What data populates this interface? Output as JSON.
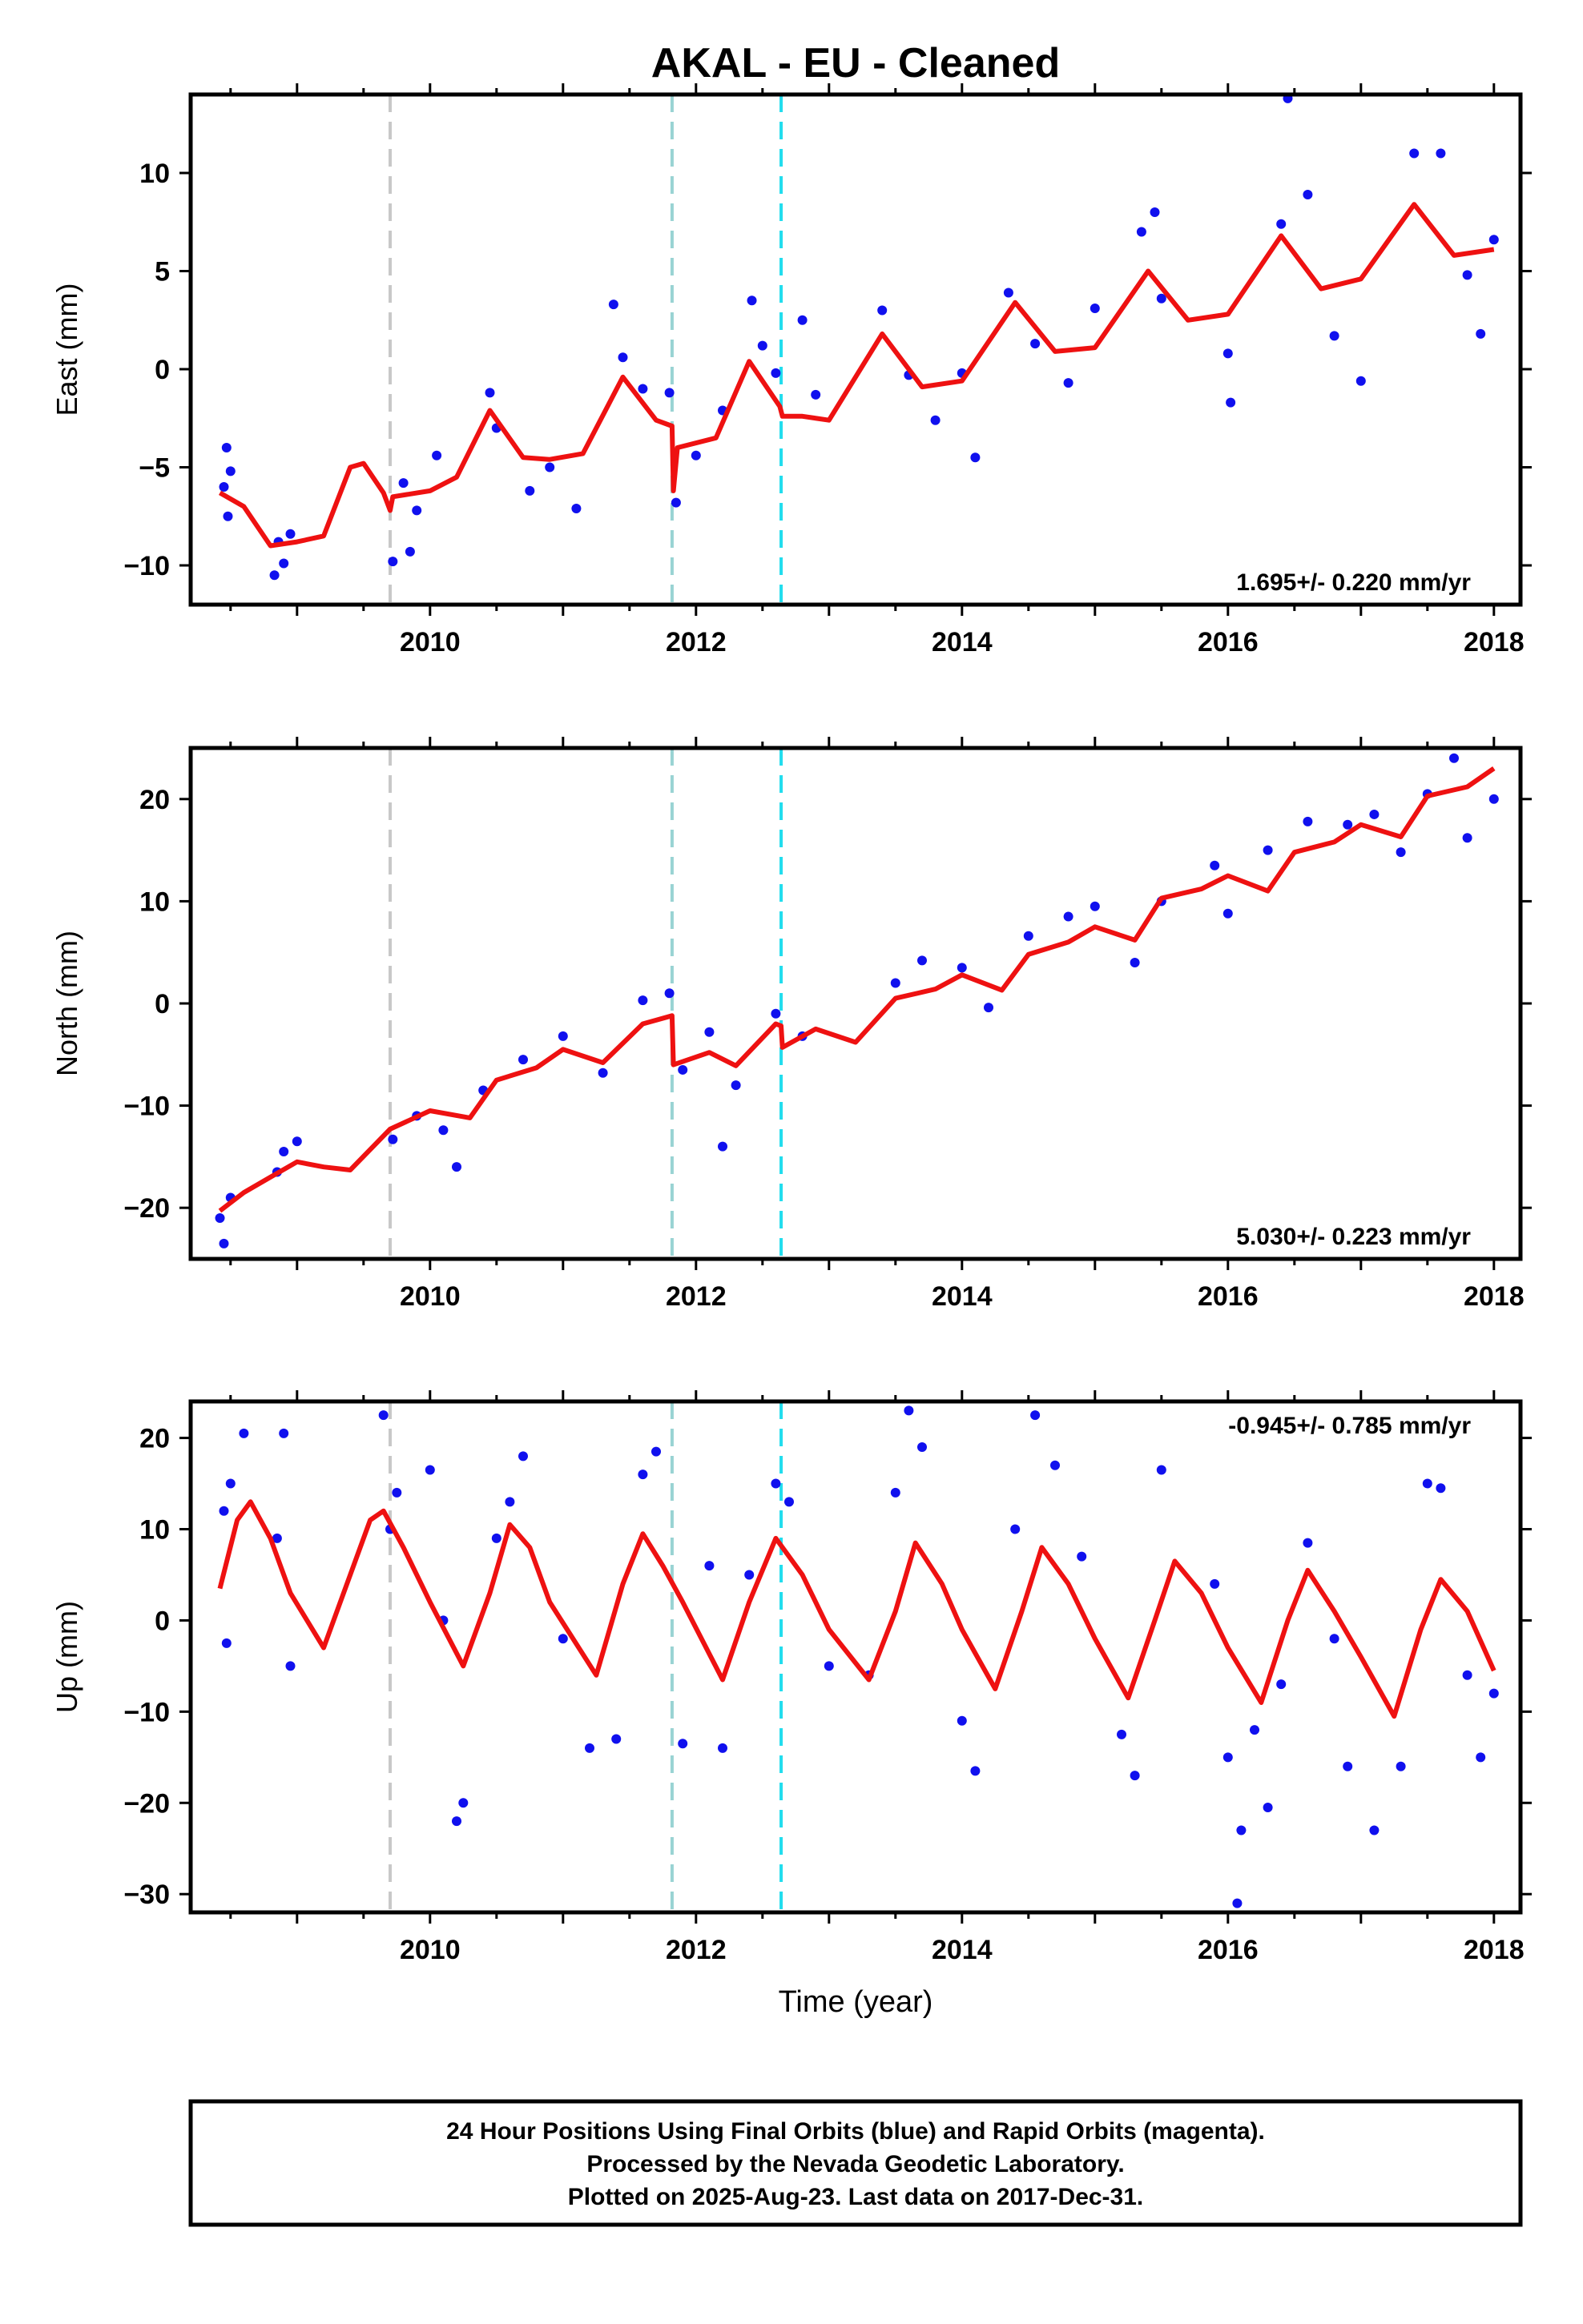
{
  "title": "AKAL  - EU - Cleaned",
  "xlabel": "Time (year)",
  "footer": {
    "line1": "24 Hour Positions Using Final Orbits (blue) and Rapid Orbits (magenta).",
    "line2": "Processed by the Nevada Geodetic Laboratory.",
    "line3": "Plotted on 2025-Aug-23. Last data on 2017-Dec-31."
  },
  "colors": {
    "points": "#1010ee",
    "model": "#ee1111",
    "steps": [
      "#c8c8c8",
      "#99d3d3",
      "#22ddee"
    ]
  },
  "chart_data": [
    {
      "type": "scatter",
      "ylabel": "East (mm)",
      "rate_label": "1.695+/- 0.220 mm/yr",
      "xlim": [
        2008.2,
        2018.2
      ],
      "ylim": [
        -12,
        14
      ],
      "xticks": [
        2010,
        2012,
        2014,
        2016,
        2018
      ],
      "yticks": [
        -10,
        -5,
        0,
        5,
        10
      ],
      "step_lines": [
        2009.7,
        2011.82,
        2012.64
      ],
      "model": [
        [
          2008.42,
          -6.3
        ],
        [
          2008.6,
          -7.0
        ],
        [
          2008.8,
          -9.0
        ],
        [
          2009.0,
          -8.8
        ],
        [
          2009.2,
          -8.5
        ],
        [
          2009.4,
          -5.0
        ],
        [
          2009.5,
          -4.8
        ],
        [
          2009.65,
          -6.3
        ],
        [
          2009.7,
          -7.2
        ],
        [
          2009.72,
          -6.5
        ],
        [
          2010.0,
          -6.2
        ],
        [
          2010.2,
          -5.5
        ],
        [
          2010.45,
          -2.1
        ],
        [
          2010.7,
          -4.5
        ],
        [
          2010.9,
          -4.6
        ],
        [
          2011.15,
          -4.3
        ],
        [
          2011.45,
          -0.4
        ],
        [
          2011.7,
          -2.6
        ],
        [
          2011.82,
          -2.9
        ],
        [
          2011.83,
          -6.2
        ],
        [
          2011.86,
          -4.0
        ],
        [
          2012.15,
          -3.5
        ],
        [
          2012.4,
          0.4
        ],
        [
          2012.63,
          -1.9
        ],
        [
          2012.65,
          -2.4
        ],
        [
          2012.8,
          -2.4
        ],
        [
          2013.0,
          -2.6
        ],
        [
          2013.4,
          1.8
        ],
        [
          2013.7,
          -0.9
        ],
        [
          2014.0,
          -0.6
        ],
        [
          2014.4,
          3.4
        ],
        [
          2014.7,
          0.9
        ],
        [
          2015.0,
          1.1
        ],
        [
          2015.4,
          5.0
        ],
        [
          2015.7,
          2.5
        ],
        [
          2016.0,
          2.8
        ],
        [
          2016.4,
          6.8
        ],
        [
          2016.7,
          4.1
        ],
        [
          2017.0,
          4.6
        ],
        [
          2017.4,
          8.4
        ],
        [
          2017.7,
          5.8
        ],
        [
          2018.0,
          6.1
        ]
      ],
      "points": [
        [
          2008.45,
          -6.0
        ],
        [
          2008.47,
          -4.0
        ],
        [
          2008.48,
          -7.5
        ],
        [
          2008.5,
          -5.2
        ],
        [
          2008.83,
          -10.5
        ],
        [
          2008.86,
          -8.8
        ],
        [
          2008.9,
          -9.9
        ],
        [
          2008.95,
          -8.4
        ],
        [
          2009.72,
          -9.8
        ],
        [
          2009.8,
          -5.8
        ],
        [
          2009.85,
          -9.3
        ],
        [
          2009.9,
          -7.2
        ],
        [
          2010.05,
          -4.4
        ],
        [
          2010.45,
          -1.2
        ],
        [
          2010.5,
          -3.0
        ],
        [
          2010.75,
          -6.2
        ],
        [
          2010.9,
          -5.0
        ],
        [
          2011.1,
          -7.1
        ],
        [
          2011.38,
          3.3
        ],
        [
          2011.45,
          0.6
        ],
        [
          2011.6,
          -1.0
        ],
        [
          2011.8,
          -1.2
        ],
        [
          2011.85,
          -6.8
        ],
        [
          2012.0,
          -4.4
        ],
        [
          2012.2,
          -2.1
        ],
        [
          2012.42,
          3.5
        ],
        [
          2012.5,
          1.2
        ],
        [
          2012.6,
          -0.2
        ],
        [
          2012.8,
          2.5
        ],
        [
          2012.9,
          -1.3
        ],
        [
          2013.4,
          3.0
        ],
        [
          2013.6,
          -0.3
        ],
        [
          2013.8,
          -2.6
        ],
        [
          2014.0,
          -0.2
        ],
        [
          2014.1,
          -4.5
        ],
        [
          2014.35,
          3.9
        ],
        [
          2014.55,
          1.3
        ],
        [
          2014.8,
          -0.7
        ],
        [
          2015.0,
          3.1
        ],
        [
          2015.35,
          7.0
        ],
        [
          2015.45,
          8.0
        ],
        [
          2015.5,
          3.6
        ],
        [
          2016.0,
          0.8
        ],
        [
          2016.02,
          -1.7
        ],
        [
          2016.4,
          7.4
        ],
        [
          2016.45,
          13.8
        ],
        [
          2016.6,
          8.9
        ],
        [
          2016.8,
          1.7
        ],
        [
          2017.0,
          -0.6
        ],
        [
          2017.4,
          11.0
        ],
        [
          2017.6,
          11.0
        ],
        [
          2017.8,
          4.8
        ],
        [
          2017.9,
          1.8
        ],
        [
          2018.0,
          6.6
        ]
      ]
    },
    {
      "type": "scatter",
      "ylabel": "North (mm)",
      "rate_label": "5.030+/- 0.223 mm/yr",
      "xlim": [
        2008.2,
        2018.2
      ],
      "ylim": [
        -25,
        25
      ],
      "xticks": [
        2010,
        2012,
        2014,
        2016,
        2018
      ],
      "yticks": [
        -20,
        -10,
        0,
        10,
        20
      ],
      "step_lines": [
        2009.7,
        2011.82,
        2012.64
      ],
      "model": [
        [
          2008.42,
          -20.3
        ],
        [
          2008.6,
          -18.5
        ],
        [
          2008.8,
          -17.0
        ],
        [
          2009.0,
          -15.5
        ],
        [
          2009.2,
          -16.0
        ],
        [
          2009.4,
          -16.3
        ],
        [
          2009.7,
          -12.3
        ],
        [
          2010.0,
          -10.5
        ],
        [
          2010.3,
          -11.2
        ],
        [
          2010.5,
          -7.5
        ],
        [
          2010.8,
          -6.3
        ],
        [
          2011.0,
          -4.5
        ],
        [
          2011.3,
          -5.8
        ],
        [
          2011.6,
          -2.0
        ],
        [
          2011.82,
          -1.2
        ],
        [
          2011.83,
          -6.0
        ],
        [
          2012.1,
          -4.8
        ],
        [
          2012.3,
          -6.1
        ],
        [
          2012.6,
          -2.0
        ],
        [
          2012.64,
          -2.2
        ],
        [
          2012.65,
          -4.3
        ],
        [
          2012.9,
          -2.5
        ],
        [
          2013.2,
          -3.8
        ],
        [
          2013.5,
          0.5
        ],
        [
          2013.8,
          1.4
        ],
        [
          2014.0,
          2.8
        ],
        [
          2014.3,
          1.3
        ],
        [
          2014.5,
          4.8
        ],
        [
          2014.8,
          6.0
        ],
        [
          2015.0,
          7.5
        ],
        [
          2015.3,
          6.2
        ],
        [
          2015.5,
          10.3
        ],
        [
          2015.8,
          11.2
        ],
        [
          2016.0,
          12.5
        ],
        [
          2016.3,
          11.0
        ],
        [
          2016.5,
          14.8
        ],
        [
          2016.8,
          15.8
        ],
        [
          2017.0,
          17.5
        ],
        [
          2017.3,
          16.3
        ],
        [
          2017.5,
          20.3
        ],
        [
          2017.8,
          21.2
        ],
        [
          2018.0,
          23.0
        ]
      ],
      "points": [
        [
          2008.42,
          -21.0
        ],
        [
          2008.45,
          -23.5
        ],
        [
          2008.5,
          -19.0
        ],
        [
          2008.85,
          -16.5
        ],
        [
          2008.9,
          -14.5
        ],
        [
          2009.0,
          -13.5
        ],
        [
          2009.72,
          -13.3
        ],
        [
          2009.9,
          -11.0
        ],
        [
          2010.1,
          -12.4
        ],
        [
          2010.2,
          -16.0
        ],
        [
          2010.4,
          -8.5
        ],
        [
          2010.7,
          -5.5
        ],
        [
          2011.0,
          -3.2
        ],
        [
          2011.3,
          -6.8
        ],
        [
          2011.6,
          0.3
        ],
        [
          2011.8,
          1.0
        ],
        [
          2011.9,
          -6.5
        ],
        [
          2012.1,
          -2.8
        ],
        [
          2012.2,
          -14.0
        ],
        [
          2012.3,
          -8.0
        ],
        [
          2012.6,
          -1.0
        ],
        [
          2012.8,
          -3.2
        ],
        [
          2013.5,
          2.0
        ],
        [
          2013.7,
          4.2
        ],
        [
          2014.0,
          3.5
        ],
        [
          2014.2,
          -0.4
        ],
        [
          2014.5,
          6.6
        ],
        [
          2014.8,
          8.5
        ],
        [
          2015.0,
          9.5
        ],
        [
          2015.3,
          4.0
        ],
        [
          2015.5,
          10.0
        ],
        [
          2015.9,
          13.5
        ],
        [
          2016.0,
          8.8
        ],
        [
          2016.3,
          15.0
        ],
        [
          2016.6,
          17.8
        ],
        [
          2016.9,
          17.5
        ],
        [
          2017.1,
          18.5
        ],
        [
          2017.3,
          14.8
        ],
        [
          2017.5,
          20.5
        ],
        [
          2017.7,
          24.0
        ],
        [
          2017.8,
          16.2
        ],
        [
          2018.0,
          20.0
        ]
      ]
    },
    {
      "type": "scatter",
      "ylabel": "Up (mm)",
      "xlabel": "Time (year)",
      "rate_label": "-0.945+/- 0.785 mm/yr",
      "xlim": [
        2008.2,
        2018.2
      ],
      "ylim": [
        -32,
        24
      ],
      "xticks": [
        2010,
        2012,
        2014,
        2016,
        2018
      ],
      "yticks": [
        -30,
        -20,
        -10,
        0,
        10,
        20
      ],
      "step_lines": [
        2009.7,
        2011.82,
        2012.64
      ],
      "model": [
        [
          2008.42,
          3.5
        ],
        [
          2008.55,
          11.0
        ],
        [
          2008.65,
          13.0
        ],
        [
          2008.8,
          9.0
        ],
        [
          2008.95,
          3.0
        ],
        [
          2009.2,
          -3.0
        ],
        [
          2009.4,
          5.0
        ],
        [
          2009.55,
          11.0
        ],
        [
          2009.65,
          12.0
        ],
        [
          2009.8,
          8.0
        ],
        [
          2010.0,
          2.0
        ],
        [
          2010.25,
          -5.0
        ],
        [
          2010.45,
          3.0
        ],
        [
          2010.6,
          10.5
        ],
        [
          2010.75,
          8.0
        ],
        [
          2010.9,
          2.0
        ],
        [
          2011.25,
          -6.0
        ],
        [
          2011.45,
          4.0
        ],
        [
          2011.6,
          9.5
        ],
        [
          2011.75,
          6.0
        ],
        [
          2011.9,
          2.0
        ],
        [
          2012.2,
          -6.5
        ],
        [
          2012.4,
          2.0
        ],
        [
          2012.6,
          9.0
        ],
        [
          2012.8,
          5.0
        ],
        [
          2013.0,
          -1.0
        ],
        [
          2013.3,
          -6.5
        ],
        [
          2013.5,
          1.0
        ],
        [
          2013.65,
          8.5
        ],
        [
          2013.85,
          4.0
        ],
        [
          2014.0,
          -1.0
        ],
        [
          2014.25,
          -7.5
        ],
        [
          2014.45,
          1.0
        ],
        [
          2014.6,
          8.0
        ],
        [
          2014.8,
          4.0
        ],
        [
          2015.0,
          -2.0
        ],
        [
          2015.25,
          -8.5
        ],
        [
          2015.45,
          0.0
        ],
        [
          2015.6,
          6.5
        ],
        [
          2015.8,
          3.0
        ],
        [
          2016.0,
          -3.0
        ],
        [
          2016.25,
          -9.0
        ],
        [
          2016.45,
          0.0
        ],
        [
          2016.6,
          5.5
        ],
        [
          2016.8,
          1.0
        ],
        [
          2017.0,
          -4.0
        ],
        [
          2017.25,
          -10.5
        ],
        [
          2017.45,
          -1.0
        ],
        [
          2017.6,
          4.5
        ],
        [
          2017.8,
          1.0
        ],
        [
          2018.0,
          -5.5
        ]
      ],
      "points": [
        [
          2008.45,
          12.0
        ],
        [
          2008.5,
          15.0
        ],
        [
          2008.47,
          -2.5
        ],
        [
          2008.6,
          20.5
        ],
        [
          2008.85,
          9.0
        ],
        [
          2008.9,
          20.5
        ],
        [
          2008.95,
          -5.0
        ],
        [
          2009.65,
          22.5
        ],
        [
          2009.7,
          10.0
        ],
        [
          2009.75,
          14.0
        ],
        [
          2010.0,
          16.5
        ],
        [
          2010.1,
          0.0
        ],
        [
          2010.2,
          -22.0
        ],
        [
          2010.25,
          -20.0
        ],
        [
          2010.5,
          9.0
        ],
        [
          2010.6,
          13.0
        ],
        [
          2010.7,
          18.0
        ],
        [
          2011.0,
          -2.0
        ],
        [
          2011.2,
          -14.0
        ],
        [
          2011.4,
          -13.0
        ],
        [
          2011.6,
          16.0
        ],
        [
          2011.7,
          18.5
        ],
        [
          2011.9,
          -13.5
        ],
        [
          2012.1,
          6.0
        ],
        [
          2012.2,
          -14.0
        ],
        [
          2012.4,
          5.0
        ],
        [
          2012.6,
          15.0
        ],
        [
          2012.7,
          13.0
        ],
        [
          2013.0,
          -5.0
        ],
        [
          2013.3,
          -6.0
        ],
        [
          2013.5,
          14.0
        ],
        [
          2013.6,
          23.0
        ],
        [
          2013.7,
          19.0
        ],
        [
          2014.0,
          -11.0
        ],
        [
          2014.1,
          -16.5
        ],
        [
          2014.4,
          10.0
        ],
        [
          2014.55,
          22.5
        ],
        [
          2014.7,
          17.0
        ],
        [
          2014.9,
          7.0
        ],
        [
          2015.2,
          -12.5
        ],
        [
          2015.3,
          -17.0
        ],
        [
          2015.5,
          16.5
        ],
        [
          2015.9,
          4.0
        ],
        [
          2016.0,
          -15.0
        ],
        [
          2016.1,
          -23.0
        ],
        [
          2016.2,
          -12.0
        ],
        [
          2016.3,
          -20.5
        ],
        [
          2016.4,
          -7.0
        ],
        [
          2016.6,
          8.5
        ],
        [
          2016.8,
          -2.0
        ],
        [
          2016.9,
          -16.0
        ],
        [
          2017.1,
          -23.0
        ],
        [
          2017.3,
          -16.0
        ],
        [
          2017.5,
          15.0
        ],
        [
          2017.6,
          14.5
        ],
        [
          2017.8,
          -6.0
        ],
        [
          2017.9,
          -15.0
        ],
        [
          2018.0,
          -8.0
        ],
        [
          2016.07,
          -31.0
        ]
      ]
    }
  ]
}
